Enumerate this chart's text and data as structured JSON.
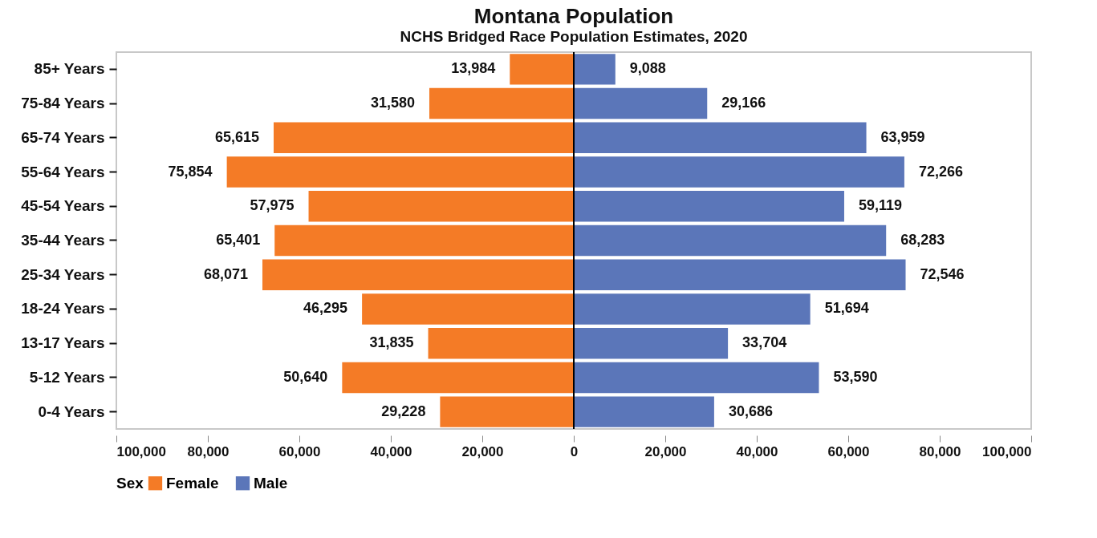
{
  "chart_data": {
    "type": "bar",
    "orientation": "horizontal",
    "title": "Montana Population",
    "subtitle": "NCHS Bridged Race Population Estimates, 2020",
    "categories": [
      "85+ Years",
      "75-84 Years",
      "65-74 Years",
      "55-64 Years",
      "45-54 Years",
      "35-44 Years",
      "25-34 Years",
      "18-24 Years",
      "13-17 Years",
      "5-12 Years",
      "0-4 Years"
    ],
    "series": [
      {
        "name": "Female",
        "color": "#f47b26",
        "base": [
          -13984,
          -31580,
          -65615,
          -75854,
          -57975,
          -65401,
          -68071,
          -46295,
          -31835,
          -50640,
          -29228
        ],
        "values": [
          13984,
          31580,
          65615,
          75854,
          57975,
          65401,
          68071,
          46295,
          31835,
          50640,
          29228
        ],
        "value_labels": [
          "13,984",
          "31,580",
          "65,615",
          "75,854",
          "57,975",
          "65,401",
          "68,071",
          "46,295",
          "31,835",
          "50,640",
          "29,228"
        ]
      },
      {
        "name": "Male",
        "color": "#5b76b9",
        "values": [
          9088,
          29166,
          63959,
          72266,
          59119,
          68283,
          72546,
          51694,
          33704,
          53590,
          30686
        ],
        "value_labels": [
          "9,088",
          "29,166",
          "63,959",
          "72,266",
          "59,119",
          "68,283",
          "72,546",
          "51,694",
          "33,704",
          "53,590",
          "30,686"
        ]
      }
    ],
    "xlim": [
      -100000,
      100000
    ],
    "xticks": [
      {
        "value": -100000,
        "label": "100,000"
      },
      {
        "value": -80000,
        "label": "80,000"
      },
      {
        "value": -60000,
        "label": "60,000"
      },
      {
        "value": -40000,
        "label": "40,000"
      },
      {
        "value": -20000,
        "label": "20,000"
      },
      0,
      {
        "value": 20000,
        "label": "20,000"
      },
      {
        "value": 40000,
        "label": "40,000"
      },
      {
        "value": 60000,
        "label": "60,000"
      },
      {
        "value": 80000,
        "label": "80,000"
      },
      {
        "value": 100000,
        "label": "100,000"
      }
    ],
    "legend": "bottom",
    "legend_title": "Sex",
    "grid": false,
    "ref_lines": [
      {
        "axis": "x",
        "value": 0,
        "color": "#000000"
      }
    ]
  }
}
